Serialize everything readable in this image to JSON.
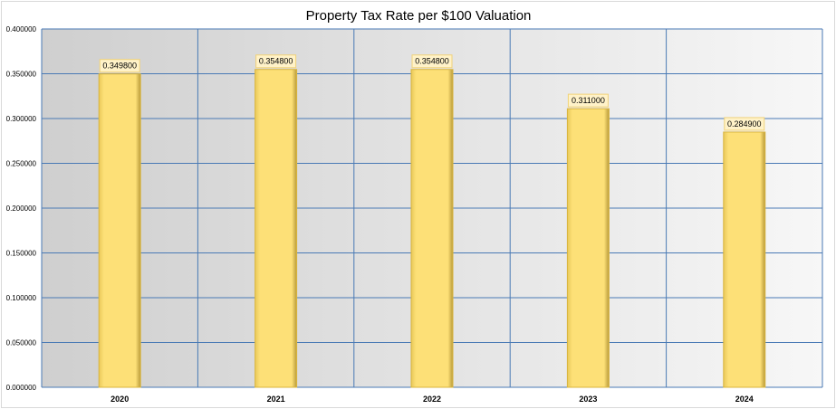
{
  "chart_data": {
    "type": "bar",
    "title": "Property Tax Rate per $100 Valuation",
    "categories": [
      "2020",
      "2021",
      "2022",
      "2023",
      "2024"
    ],
    "values": [
      0.3498,
      0.3548,
      0.3548,
      0.311,
      0.2849
    ],
    "data_labels": [
      "0.349800",
      "0.354800",
      "0.354800",
      "0.311000",
      "0.284900"
    ],
    "xlabel": "",
    "ylabel": "",
    "ylim": [
      0,
      0.4
    ],
    "yticks": [
      0,
      0.05,
      0.1,
      0.15,
      0.2,
      0.25,
      0.3,
      0.35,
      0.4
    ],
    "ytick_labels": [
      "0.000000",
      "0.050000",
      "0.100000",
      "0.150000",
      "0.200000",
      "0.250000",
      "0.300000",
      "0.350000",
      "0.400000"
    ],
    "grid": true,
    "legend": "none",
    "colors": {
      "bar": "#fde077",
      "bar_edge": "#d9b43c",
      "grid": "#4a7ab5",
      "label_bg": "#fff2c8"
    }
  }
}
